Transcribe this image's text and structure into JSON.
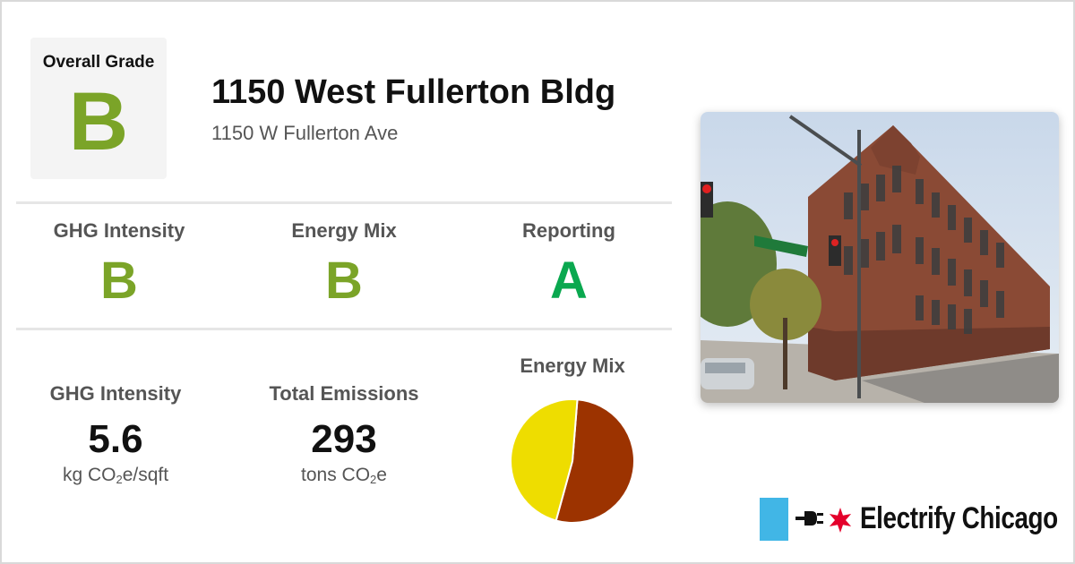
{
  "overall": {
    "label": "Overall Grade",
    "grade": "B",
    "grade_color": "#7ba428"
  },
  "building": {
    "name": "1150 West Fullerton Bldg",
    "address": "1150 W Fullerton Ave"
  },
  "grades": [
    {
      "label": "GHG Intensity",
      "value": "B",
      "color": "#7ba428"
    },
    {
      "label": "Energy Mix",
      "value": "B",
      "color": "#7ba428"
    },
    {
      "label": "Reporting",
      "value": "A",
      "color": "#0aa84f"
    }
  ],
  "stats": {
    "ghg": {
      "label": "GHG Intensity",
      "value": "5.6",
      "unit_prefix": "kg CO",
      "unit_sub": "2",
      "unit_suffix": "e/sqft"
    },
    "total": {
      "label": "Total Emissions",
      "value": "293",
      "unit_prefix": "tons CO",
      "unit_sub": "2",
      "unit_suffix": "e"
    }
  },
  "energy_mix_chart": {
    "title": "Energy Mix",
    "slices": [
      {
        "fraction": 0.53,
        "color": "#9c3300"
      },
      {
        "fraction": 0.47,
        "color": "#eedd00"
      }
    ]
  },
  "photo": {
    "icon": "building-street-photo"
  },
  "brand": {
    "name": "Electrify Chicago",
    "bar_color": "#41b6e6",
    "star_color": "#e4002b"
  }
}
